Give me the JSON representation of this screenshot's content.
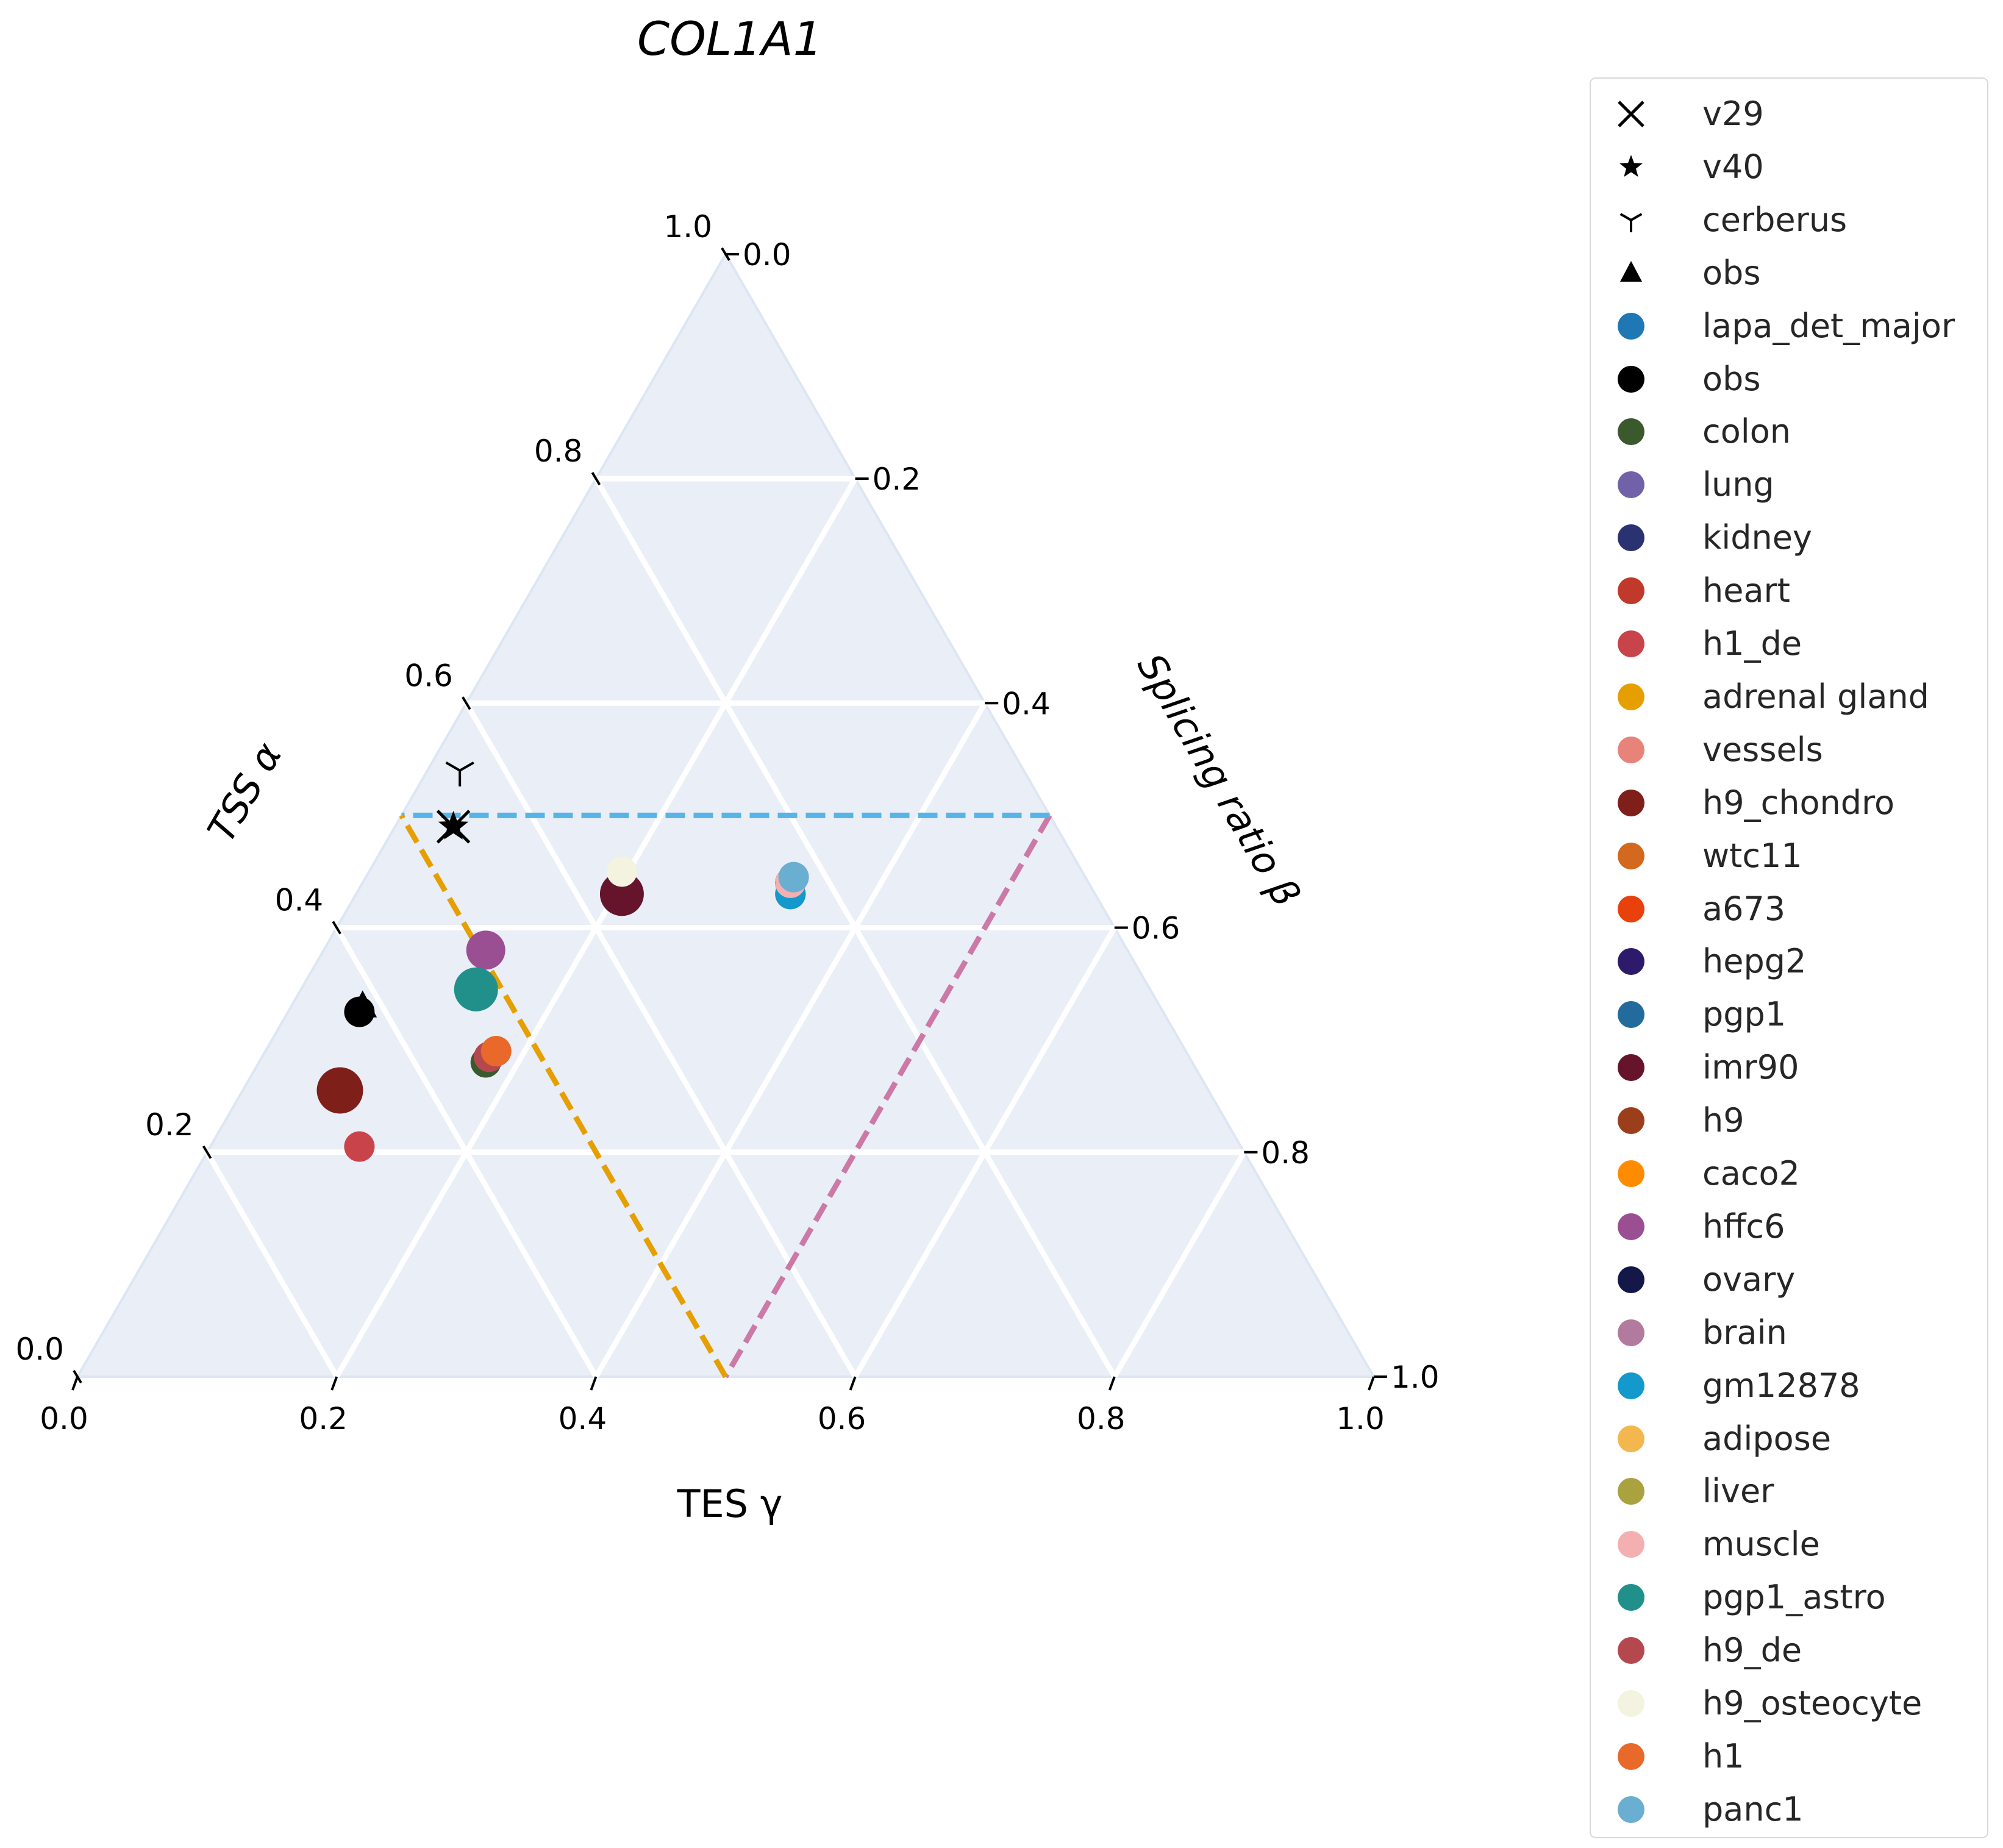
{
  "chart_data": {
    "type": "scatter",
    "subtype": "ternary",
    "title": "COL1A1",
    "axes": {
      "a": {
        "label": "TSS α",
        "ticks": [
          "0.0",
          "0.2",
          "0.4",
          "0.6",
          "0.8",
          "1.0"
        ]
      },
      "b": {
        "label": "Splicing ratio β",
        "ticks": [
          "0.0",
          "0.2",
          "0.4",
          "0.6",
          "0.8",
          "1.0"
        ]
      },
      "c": {
        "label": "TES γ",
        "ticks": [
          "0.0",
          "0.2",
          "0.4",
          "0.6",
          "0.8",
          "1.0"
        ]
      },
      "range": [
        0,
        1
      ]
    },
    "grid": true,
    "legend_position": "outside-right",
    "guide_lines": [
      {
        "name": "splicing-threshold",
        "color": "#cc79a7",
        "from": {
          "a": 0.5,
          "b": 0.5,
          "c": 0.0
        },
        "to": {
          "a": 0.0,
          "b": 0.5,
          "c": 0.5
        }
      },
      {
        "name": "tss-threshold",
        "color": "#56b4e9",
        "from": {
          "a": 0.5,
          "b": 0.5,
          "c": 0.0
        },
        "to": {
          "a": 0.5,
          "b": 0.0,
          "c": 0.5
        }
      },
      {
        "name": "tes-threshold",
        "color": "#e69f00",
        "from": {
          "a": 0.0,
          "b": 0.5,
          "c": 0.5
        },
        "to": {
          "a": 0.5,
          "b": 0.0,
          "c": 0.5
        }
      }
    ],
    "series": [
      {
        "name": "v29",
        "marker": "x",
        "color": "#000000",
        "points": [
          {
            "a": 0.49,
            "b": 0.045,
            "c": 0.465
          }
        ]
      },
      {
        "name": "v40",
        "marker": "star",
        "color": "#000000",
        "points": [
          {
            "a": 0.49,
            "b": 0.045,
            "c": 0.465
          }
        ]
      },
      {
        "name": "cerberus",
        "marker": "tri_down",
        "color": "#000000",
        "points": [
          {
            "a": 0.54,
            "b": 0.025,
            "c": 0.435
          }
        ]
      },
      {
        "name": "obs",
        "marker": "triangle",
        "color": "#000000",
        "points": [
          {
            "a": 0.33,
            "b": 0.055,
            "c": 0.615
          }
        ]
      },
      {
        "name": "lapa_det_major",
        "marker": "circle",
        "color": "#1f77b4",
        "points": []
      },
      {
        "name": "obs",
        "marker": "circle",
        "color": "#000000",
        "points": [
          {
            "a": 0.325,
            "b": 0.055,
            "c": 0.62
          },
          {
            "a": 0.44,
            "b": 0.33,
            "c": 0.23
          }
        ]
      },
      {
        "name": "colon",
        "marker": "circle",
        "color": "#3a5a2e",
        "points": [
          {
            "a": 0.28,
            "b": 0.175,
            "c": 0.545
          }
        ]
      },
      {
        "name": "lung",
        "marker": "circle",
        "color": "#7061a8",
        "points": [
          {
            "a": 0.44,
            "b": 0.33,
            "c": 0.23
          }
        ]
      },
      {
        "name": "kidney",
        "marker": "circle",
        "color": "#2b3272",
        "points": [
          {
            "a": 0.44,
            "b": 0.33,
            "c": 0.23
          }
        ]
      },
      {
        "name": "heart",
        "marker": "circle",
        "color": "#c0392b",
        "points": [
          {
            "a": 0.44,
            "b": 0.33,
            "c": 0.23
          }
        ]
      },
      {
        "name": "h1_de",
        "marker": "circle",
        "color": "#c9434a",
        "points": [
          {
            "a": 0.205,
            "b": 0.115,
            "c": 0.68
          }
        ]
      },
      {
        "name": "adrenal gland",
        "marker": "circle",
        "color": "#e69f00",
        "points": [
          {
            "a": 0.43,
            "b": 0.335,
            "c": 0.235
          }
        ]
      },
      {
        "name": "vessels",
        "marker": "circle",
        "color": "#e8837a",
        "points": [
          {
            "a": 0.44,
            "b": 0.33,
            "c": 0.23
          }
        ]
      },
      {
        "name": "h9_chondro",
        "marker": "circle",
        "color": "#7f1f1a",
        "points": [
          {
            "a": 0.255,
            "b": 0.075,
            "c": 0.67
          }
        ]
      },
      {
        "name": "wtc11",
        "marker": "circle",
        "color": "#d2691e",
        "points": [
          {
            "a": 0.44,
            "b": 0.33,
            "c": 0.23
          }
        ]
      },
      {
        "name": "a673",
        "marker": "circle",
        "color": "#e8410c",
        "points": [
          {
            "a": 0.44,
            "b": 0.33,
            "c": 0.23
          }
        ]
      },
      {
        "name": "hepg2",
        "marker": "circle",
        "color": "#2e1a6b",
        "points": [
          {
            "a": 0.44,
            "b": 0.33,
            "c": 0.23
          }
        ]
      },
      {
        "name": "pgp1",
        "marker": "circle",
        "color": "#236b9c",
        "points": [
          {
            "a": 0.43,
            "b": 0.335,
            "c": 0.235
          }
        ]
      },
      {
        "name": "imr90",
        "marker": "circle",
        "color": "#66132c",
        "points": [
          {
            "a": 0.43,
            "b": 0.205,
            "c": 0.365
          }
        ]
      },
      {
        "name": "h9",
        "marker": "circle",
        "color": "#9c3e1b",
        "points": [
          {
            "a": 0.44,
            "b": 0.33,
            "c": 0.23
          }
        ]
      },
      {
        "name": "caco2",
        "marker": "circle",
        "color": "#ff8c00",
        "points": [
          {
            "a": 0.44,
            "b": 0.33,
            "c": 0.23
          }
        ]
      },
      {
        "name": "hffc6",
        "marker": "circle",
        "color": "#9a4f93",
        "points": [
          {
            "a": 0.38,
            "b": 0.125,
            "c": 0.495
          }
        ]
      },
      {
        "name": "ovary",
        "marker": "circle",
        "color": "#131849",
        "points": [
          {
            "a": 0.44,
            "b": 0.33,
            "c": 0.23
          }
        ]
      },
      {
        "name": "brain",
        "marker": "circle",
        "color": "#b27a9c",
        "points": [
          {
            "a": 0.44,
            "b": 0.33,
            "c": 0.23
          }
        ]
      },
      {
        "name": "gm12878",
        "marker": "circle",
        "color": "#1499cc",
        "points": [
          {
            "a": 0.43,
            "b": 0.335,
            "c": 0.235
          }
        ]
      },
      {
        "name": "adipose",
        "marker": "circle",
        "color": "#f4b74f",
        "points": []
      },
      {
        "name": "liver",
        "marker": "circle",
        "color": "#a9a23f",
        "points": []
      },
      {
        "name": "muscle",
        "marker": "circle",
        "color": "#f4b0b0",
        "points": [
          {
            "a": 0.44,
            "b": 0.33,
            "c": 0.23
          }
        ]
      },
      {
        "name": "pgp1_astro",
        "marker": "circle",
        "color": "#22908a",
        "points": [
          {
            "a": 0.345,
            "b": 0.135,
            "c": 0.52
          }
        ]
      },
      {
        "name": "h9_de",
        "marker": "circle",
        "color": "#b5484e",
        "points": [
          {
            "a": 0.285,
            "b": 0.175,
            "c": 0.54
          }
        ]
      },
      {
        "name": "h9_osteocyte",
        "marker": "circle",
        "color": "#f3f3df",
        "points": [
          {
            "a": 0.45,
            "b": 0.195,
            "c": 0.355
          }
        ]
      },
      {
        "name": "h1",
        "marker": "circle",
        "color": "#e8692a",
        "points": [
          {
            "a": 0.29,
            "b": 0.178,
            "c": 0.532
          }
        ]
      },
      {
        "name": "panc1",
        "marker": "circle",
        "color": "#6aaed1",
        "points": [
          {
            "a": 0.445,
            "b": 0.33,
            "c": 0.225
          }
        ]
      }
    ]
  }
}
